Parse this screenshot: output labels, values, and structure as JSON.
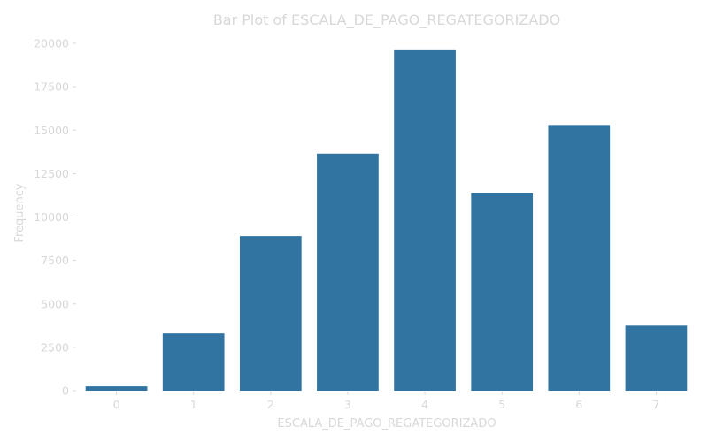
{
  "chart_data": {
    "type": "bar",
    "title": "Bar Plot of ESCALA_DE_PAGO_REGATEGORIZADO",
    "xlabel": "ESCALA_DE_PAGO_REGATEGORIZADO",
    "ylabel": "Frequency",
    "categories": [
      "0",
      "1",
      "2",
      "3",
      "4",
      "5",
      "6",
      "7"
    ],
    "values": [
      250,
      3300,
      8900,
      13650,
      19650,
      11400,
      15300,
      3750
    ],
    "ylim": [
      0,
      20000
    ],
    "yticks": [
      0,
      2500,
      5000,
      7500,
      10000,
      12500,
      15000,
      17500,
      20000
    ],
    "ytick_labels": [
      "0",
      "2500",
      "5000",
      "7500",
      "10000",
      "12500",
      "15000",
      "17500",
      "20000"
    ],
    "bar_color": "#3274a1",
    "text_color": "#d8d8d8",
    "grid": false,
    "legend": "none"
  }
}
